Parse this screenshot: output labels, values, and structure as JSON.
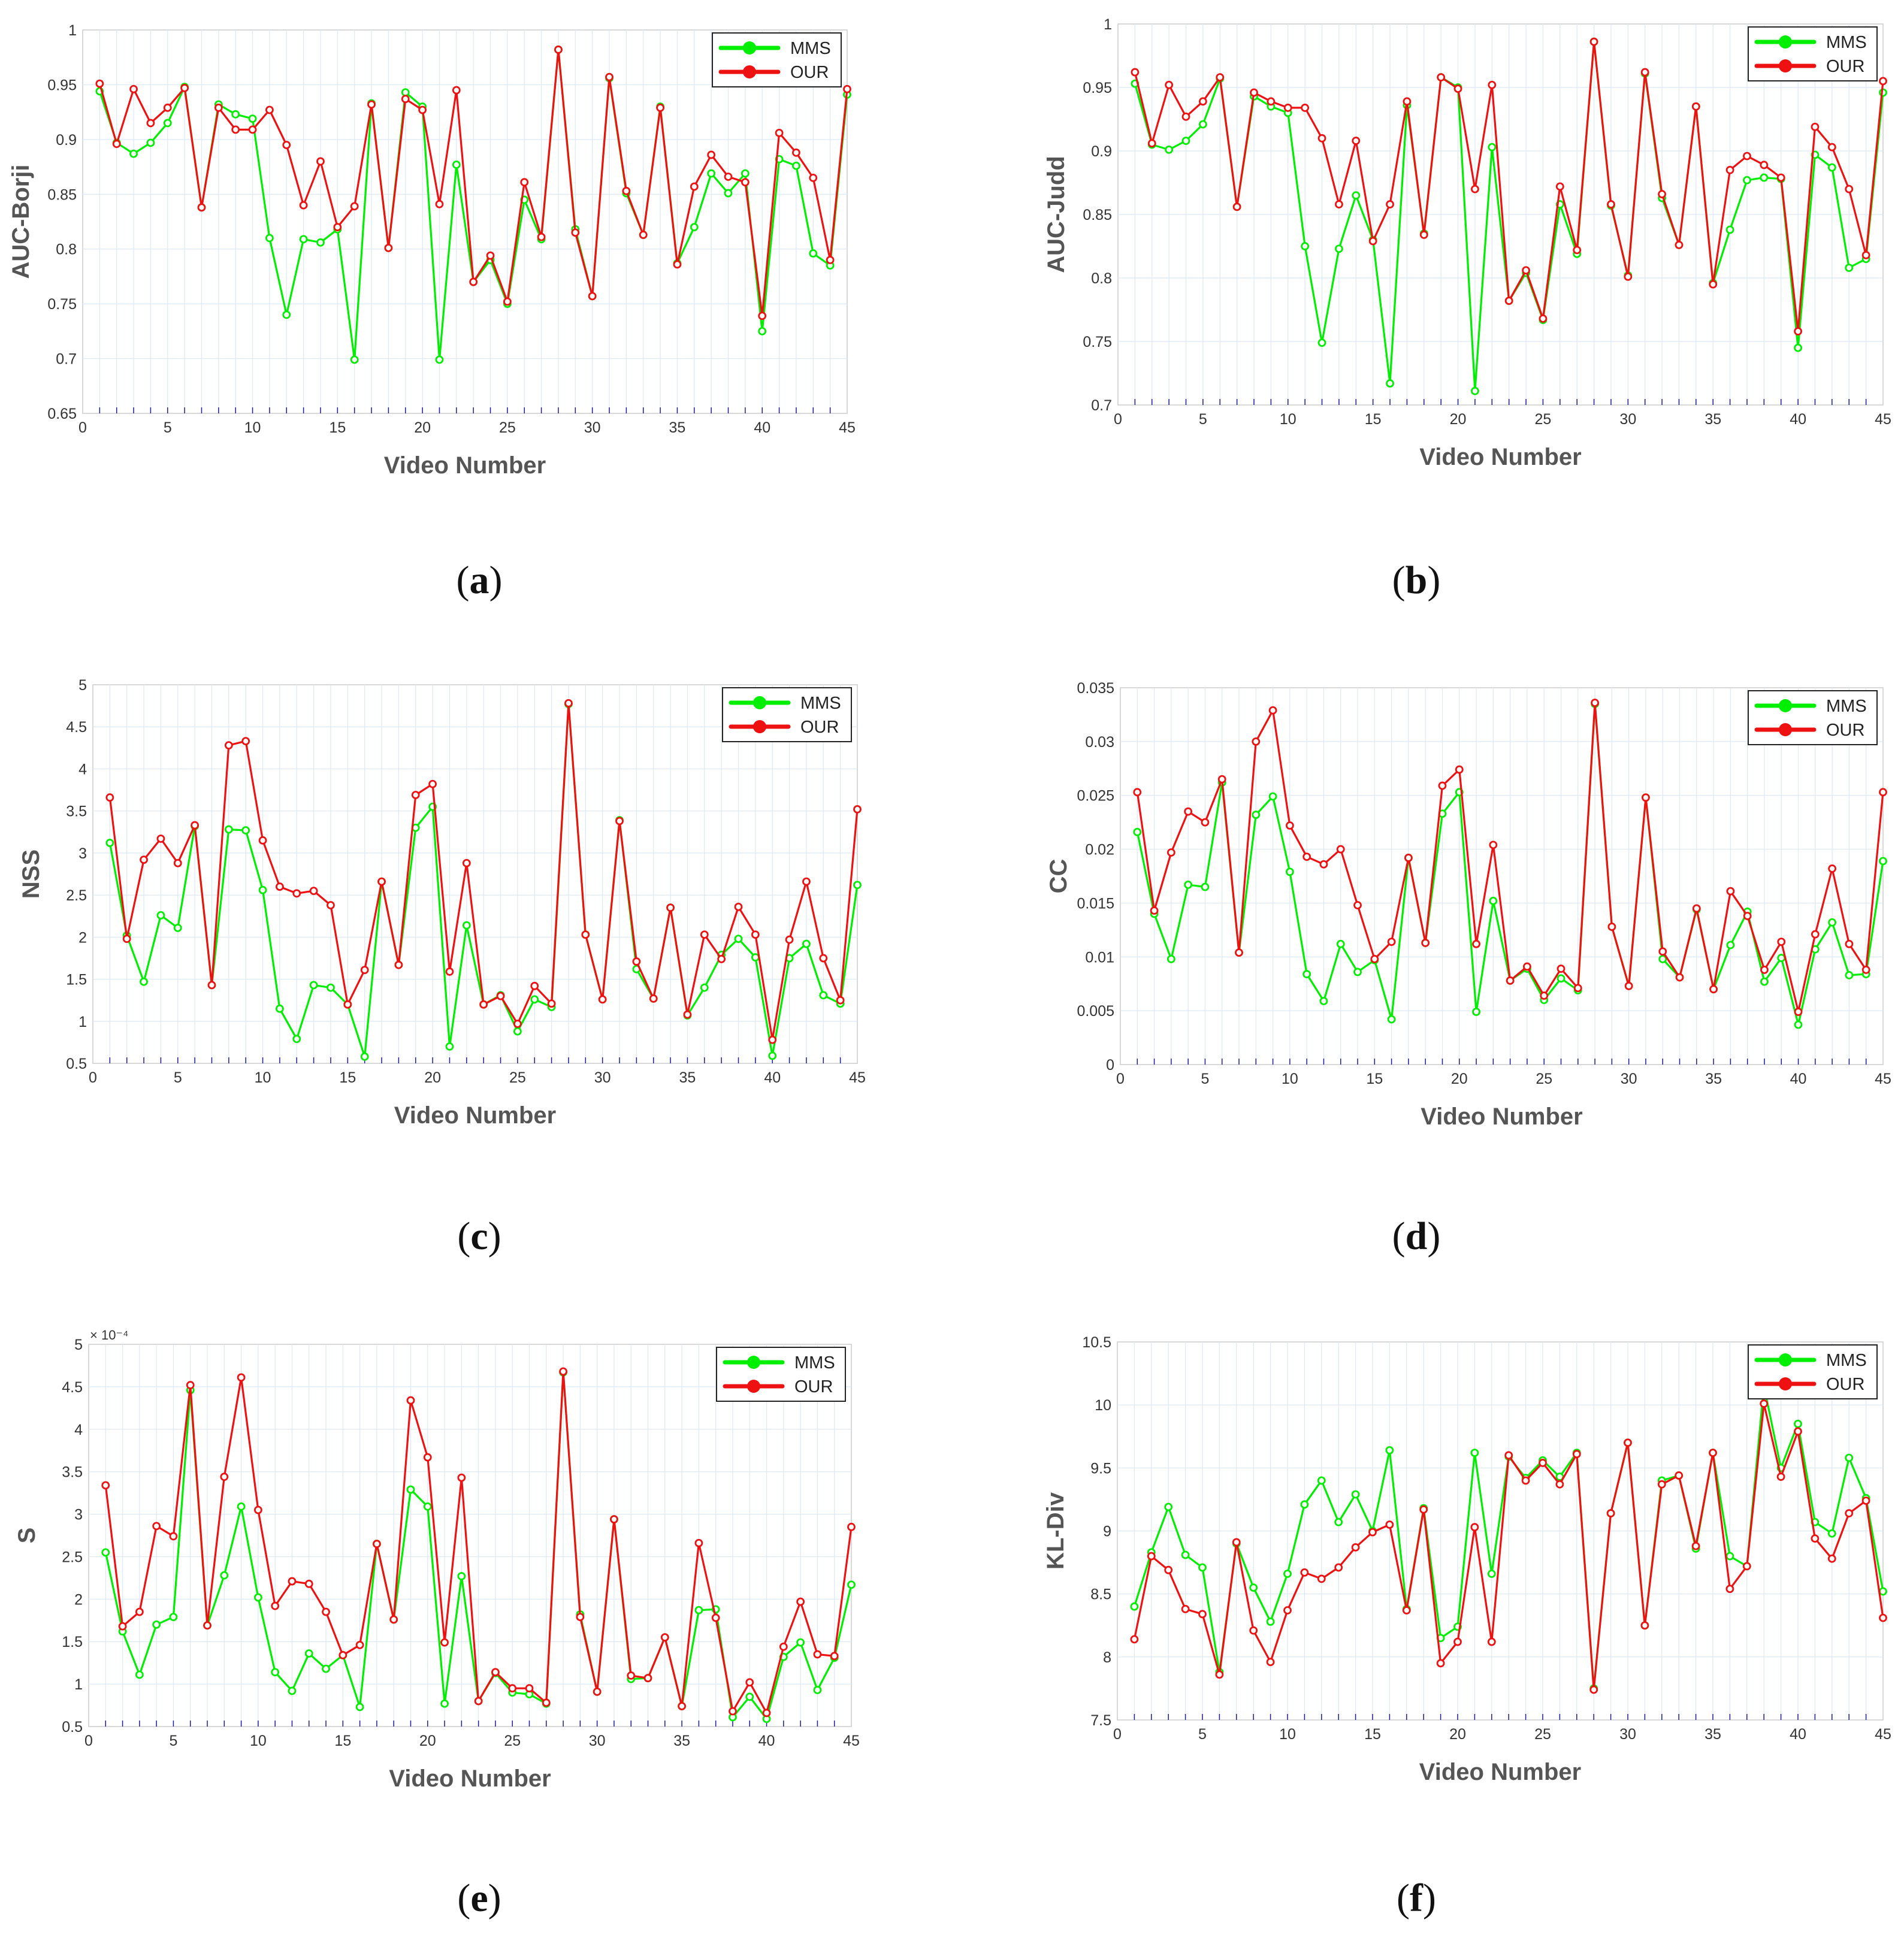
{
  "colors": {
    "mms": "#00ee00",
    "our": "#ee1111",
    "grid": "#dbe8f5",
    "axis": "#cccccc",
    "tickmark": "#1a1aa0"
  },
  "chart_data": [
    {
      "id": "a",
      "type": "line",
      "caption": "a",
      "xlabel": "Video Number",
      "ylabel": "AUC-Borji",
      "xlim": [
        0,
        45
      ],
      "ylim": [
        0.65,
        1
      ],
      "xticks": [
        "0",
        "5",
        "10",
        "15",
        "20",
        "25",
        "30",
        "35",
        "40",
        "45"
      ],
      "yticks": [
        "0.65",
        "0.7",
        "0.75",
        "0.8",
        "0.85",
        "0.9",
        "0.95",
        "1"
      ],
      "exponent": "",
      "x": [
        1,
        2,
        3,
        4,
        5,
        6,
        7,
        8,
        9,
        10,
        11,
        12,
        13,
        14,
        15,
        16,
        17,
        18,
        19,
        20,
        21,
        22,
        23,
        24,
        25,
        26,
        27,
        28,
        29,
        30,
        31,
        32,
        33,
        34,
        35,
        36,
        37,
        38,
        39,
        40,
        41,
        42,
        43,
        44,
        45
      ],
      "series": [
        {
          "name": "MMS",
          "values": [
            0.944,
            0.897,
            0.887,
            0.897,
            0.915,
            0.948,
            0.838,
            0.932,
            0.923,
            0.919,
            0.81,
            0.74,
            0.809,
            0.806,
            0.818,
            0.699,
            0.933,
            0.801,
            0.943,
            0.93,
            0.699,
            0.877,
            0.77,
            0.79,
            0.75,
            0.845,
            0.809,
            0.982,
            0.818,
            0.757,
            0.956,
            0.851,
            0.813,
            0.93,
            0.787,
            0.82,
            0.869,
            0.851,
            0.869,
            0.725,
            0.882,
            0.876,
            0.796,
            0.785,
            0.941
          ]
        },
        {
          "name": "OUR",
          "values": [
            0.951,
            0.896,
            0.946,
            0.915,
            0.929,
            0.947,
            0.838,
            0.929,
            0.909,
            0.909,
            0.927,
            0.895,
            0.84,
            0.88,
            0.82,
            0.839,
            0.932,
            0.801,
            0.937,
            0.927,
            0.841,
            0.945,
            0.77,
            0.794,
            0.752,
            0.861,
            0.811,
            0.982,
            0.815,
            0.757,
            0.957,
            0.853,
            0.813,
            0.929,
            0.786,
            0.857,
            0.886,
            0.866,
            0.861,
            0.739,
            0.906,
            0.888,
            0.865,
            0.79,
            0.946
          ]
        }
      ],
      "legend": [
        "MMS",
        "OUR"
      ]
    },
    {
      "id": "b",
      "type": "line",
      "caption": "b",
      "xlabel": "Video Number",
      "ylabel": "AUC-Judd",
      "xlim": [
        0,
        45
      ],
      "ylim": [
        0.7,
        1
      ],
      "xticks": [
        "0",
        "5",
        "10",
        "15",
        "20",
        "25",
        "30",
        "35",
        "40",
        "45"
      ],
      "yticks": [
        "0.7",
        "0.75",
        "0.8",
        "0.85",
        "0.9",
        "0.95",
        "1"
      ],
      "exponent": "",
      "x": [
        1,
        2,
        3,
        4,
        5,
        6,
        7,
        8,
        9,
        10,
        11,
        12,
        13,
        14,
        15,
        16,
        17,
        18,
        19,
        20,
        21,
        22,
        23,
        24,
        25,
        26,
        27,
        28,
        29,
        30,
        31,
        32,
        33,
        34,
        35,
        36,
        37,
        38,
        39,
        40,
        41,
        42,
        43,
        44,
        45
      ],
      "series": [
        {
          "name": "MMS",
          "values": [
            0.953,
            0.905,
            0.901,
            0.908,
            0.921,
            0.957,
            0.856,
            0.943,
            0.935,
            0.93,
            0.825,
            0.749,
            0.823,
            0.865,
            0.83,
            0.717,
            0.936,
            0.835,
            0.958,
            0.95,
            0.711,
            0.903,
            0.782,
            0.804,
            0.767,
            0.858,
            0.819,
            0.986,
            0.857,
            0.802,
            0.961,
            0.863,
            0.826,
            0.935,
            0.796,
            0.838,
            0.877,
            0.879,
            0.878,
            0.745,
            0.897,
            0.887,
            0.808,
            0.815,
            0.946
          ]
        },
        {
          "name": "OUR",
          "values": [
            0.962,
            0.906,
            0.952,
            0.927,
            0.939,
            0.958,
            0.856,
            0.946,
            0.939,
            0.934,
            0.934,
            0.91,
            0.858,
            0.908,
            0.829,
            0.858,
            0.939,
            0.834,
            0.958,
            0.949,
            0.87,
            0.952,
            0.782,
            0.806,
            0.768,
            0.872,
            0.822,
            0.986,
            0.858,
            0.801,
            0.962,
            0.866,
            0.826,
            0.935,
            0.795,
            0.885,
            0.896,
            0.889,
            0.879,
            0.758,
            0.919,
            0.903,
            0.87,
            0.818,
            0.955
          ]
        }
      ],
      "legend": [
        "MMS",
        "OUR"
      ]
    },
    {
      "id": "c",
      "type": "line",
      "caption": "c",
      "xlabel": "Video Number",
      "ylabel": "NSS",
      "xlim": [
        0,
        45
      ],
      "ylim": [
        0.5,
        5
      ],
      "xticks": [
        "0",
        "5",
        "10",
        "15",
        "20",
        "25",
        "30",
        "35",
        "40",
        "45"
      ],
      "yticks": [
        "0.5",
        "1",
        "1.5",
        "2",
        "2.5",
        "3",
        "3.5",
        "4",
        "4.5",
        "5"
      ],
      "exponent": "",
      "x": [
        1,
        2,
        3,
        4,
        5,
        6,
        7,
        8,
        9,
        10,
        11,
        12,
        13,
        14,
        15,
        16,
        17,
        18,
        19,
        20,
        21,
        22,
        23,
        24,
        25,
        26,
        27,
        28,
        29,
        30,
        31,
        32,
        33,
        34,
        35,
        36,
        37,
        38,
        39,
        40,
        41,
        42,
        43,
        44,
        45
      ],
      "series": [
        {
          "name": "MMS",
          "values": [
            3.12,
            2.02,
            1.47,
            2.26,
            2.11,
            3.32,
            1.43,
            3.28,
            3.27,
            2.56,
            1.15,
            0.79,
            1.43,
            1.4,
            1.2,
            0.58,
            2.66,
            1.67,
            3.3,
            3.55,
            0.7,
            2.14,
            1.2,
            1.31,
            0.88,
            1.26,
            1.17,
            4.77,
            2.03,
            1.26,
            3.39,
            1.62,
            1.27,
            2.35,
            1.07,
            1.4,
            1.79,
            1.98,
            1.76,
            0.59,
            1.75,
            1.92,
            1.31,
            1.21,
            2.62
          ]
        },
        {
          "name": "OUR",
          "values": [
            3.66,
            1.98,
            2.92,
            3.17,
            2.88,
            3.33,
            1.43,
            4.28,
            4.33,
            3.15,
            2.6,
            2.52,
            2.55,
            2.38,
            1.2,
            1.61,
            2.66,
            1.67,
            3.69,
            3.82,
            1.59,
            2.88,
            1.2,
            1.3,
            0.97,
            1.42,
            1.21,
            4.78,
            2.03,
            1.26,
            3.38,
            1.71,
            1.27,
            2.35,
            1.08,
            2.03,
            1.74,
            2.36,
            2.03,
            0.78,
            1.97,
            2.66,
            1.75,
            1.25,
            3.52
          ]
        }
      ],
      "legend": [
        "MMS",
        "OUR"
      ]
    },
    {
      "id": "d",
      "type": "line",
      "caption": "d",
      "xlabel": "Video Number",
      "ylabel": "CC",
      "xlim": [
        0,
        45
      ],
      "ylim": [
        0,
        0.035
      ],
      "xticks": [
        "0",
        "5",
        "10",
        "15",
        "20",
        "25",
        "30",
        "35",
        "40",
        "45"
      ],
      "yticks": [
        "0",
        "0.005",
        "0.01",
        "0.015",
        "0.02",
        "0.025",
        "0.03",
        "0.035"
      ],
      "exponent": "",
      "x": [
        1,
        2,
        3,
        4,
        5,
        6,
        7,
        8,
        9,
        10,
        11,
        12,
        13,
        14,
        15,
        16,
        17,
        18,
        19,
        20,
        21,
        22,
        23,
        24,
        25,
        26,
        27,
        28,
        29,
        30,
        31,
        32,
        33,
        34,
        35,
        36,
        37,
        38,
        39,
        40,
        41,
        42,
        43,
        44,
        45
      ],
      "series": [
        {
          "name": "MMS",
          "values": [
            0.0216,
            0.014,
            0.0098,
            0.0167,
            0.0165,
            0.0262,
            0.0104,
            0.0232,
            0.0249,
            0.0179,
            0.0084,
            0.0059,
            0.0112,
            0.0086,
            0.0097,
            0.0042,
            0.0192,
            0.0113,
            0.0233,
            0.0253,
            0.0049,
            0.0152,
            0.0078,
            0.0089,
            0.006,
            0.008,
            0.0069,
            0.0335,
            0.0128,
            0.0073,
            0.0248,
            0.0098,
            0.0081,
            0.0144,
            0.007,
            0.0111,
            0.0142,
            0.0077,
            0.0099,
            0.0037,
            0.0107,
            0.0132,
            0.0083,
            0.0084,
            0.0189
          ]
        },
        {
          "name": "OUR",
          "values": [
            0.0253,
            0.0143,
            0.0197,
            0.0235,
            0.0225,
            0.0265,
            0.0104,
            0.03,
            0.0329,
            0.0222,
            0.0193,
            0.0186,
            0.02,
            0.0148,
            0.0098,
            0.0114,
            0.0192,
            0.0113,
            0.0259,
            0.0274,
            0.0112,
            0.0204,
            0.0078,
            0.0091,
            0.0064,
            0.0089,
            0.0071,
            0.0336,
            0.0128,
            0.0073,
            0.0248,
            0.0105,
            0.0081,
            0.0145,
            0.007,
            0.0161,
            0.0138,
            0.0088,
            0.0114,
            0.0049,
            0.0121,
            0.0182,
            0.0112,
            0.0088,
            0.0253
          ]
        }
      ],
      "legend": [
        "MMS",
        "OUR"
      ]
    },
    {
      "id": "e",
      "type": "line",
      "caption": "e",
      "xlabel": "Video Number",
      "ylabel": "S",
      "xlim": [
        0,
        45
      ],
      "ylim": [
        0.5,
        5
      ],
      "xticks": [
        "0",
        "5",
        "10",
        "15",
        "20",
        "25",
        "30",
        "35",
        "40",
        "45"
      ],
      "yticks": [
        "0.5",
        "1",
        "1.5",
        "2",
        "2.5",
        "3",
        "3.5",
        "4",
        "4.5",
        "5"
      ],
      "exponent": "× 10⁻⁴",
      "x": [
        1,
        2,
        3,
        4,
        5,
        6,
        7,
        8,
        9,
        10,
        11,
        12,
        13,
        14,
        15,
        16,
        17,
        18,
        19,
        20,
        21,
        22,
        23,
        24,
        25,
        26,
        27,
        28,
        29,
        30,
        31,
        32,
        33,
        34,
        35,
        36,
        37,
        38,
        39,
        40,
        41,
        42,
        43,
        44,
        45
      ],
      "series": [
        {
          "name": "MMS",
          "values": [
            2.55,
            1.62,
            1.11,
            1.7,
            1.79,
            4.46,
            1.69,
            2.28,
            3.09,
            2.02,
            1.14,
            0.92,
            1.36,
            1.18,
            1.34,
            0.73,
            2.65,
            1.76,
            3.29,
            3.09,
            0.77,
            2.27,
            0.8,
            1.13,
            0.9,
            0.88,
            0.77,
            4.67,
            1.82,
            0.91,
            2.94,
            1.06,
            1.07,
            1.55,
            0.74,
            1.87,
            1.88,
            0.61,
            0.85,
            0.59,
            1.32,
            1.49,
            0.93,
            1.31,
            2.17
          ]
        },
        {
          "name": "OUR",
          "values": [
            3.34,
            1.68,
            1.85,
            2.86,
            2.74,
            4.52,
            1.69,
            3.44,
            4.61,
            3.05,
            1.92,
            2.21,
            2.18,
            1.85,
            1.34,
            1.46,
            2.65,
            1.76,
            4.34,
            3.67,
            1.49,
            3.43,
            0.8,
            1.14,
            0.95,
            0.95,
            0.78,
            4.68,
            1.79,
            0.91,
            2.94,
            1.1,
            1.07,
            1.55,
            0.74,
            2.66,
            1.78,
            0.68,
            1.02,
            0.66,
            1.44,
            1.97,
            1.35,
            1.33,
            2.85
          ]
        }
      ],
      "legend": [
        "MMS",
        "OUR"
      ]
    },
    {
      "id": "f",
      "type": "line",
      "caption": "f",
      "xlabel": "Video Number",
      "ylabel": "KL-Div",
      "xlim": [
        0,
        45
      ],
      "ylim": [
        7.5,
        10.5
      ],
      "xticks": [
        "0",
        "5",
        "10",
        "15",
        "20",
        "25",
        "30",
        "35",
        "40",
        "45"
      ],
      "yticks": [
        "7.5",
        "8",
        "8.5",
        "9",
        "9.5",
        "10",
        "10.5"
      ],
      "exponent": "",
      "x": [
        1,
        2,
        3,
        4,
        5,
        6,
        7,
        8,
        9,
        10,
        11,
        12,
        13,
        14,
        15,
        16,
        17,
        18,
        19,
        20,
        21,
        22,
        23,
        24,
        25,
        26,
        27,
        28,
        29,
        30,
        31,
        32,
        33,
        34,
        35,
        36,
        37,
        38,
        39,
        40,
        41,
        42,
        43,
        44,
        45
      ],
      "series": [
        {
          "name": "MMS",
          "values": [
            8.4,
            8.83,
            9.19,
            8.81,
            8.71,
            7.88,
            8.9,
            8.55,
            8.28,
            8.66,
            9.21,
            9.4,
            9.07,
            9.29,
            9.0,
            9.64,
            8.38,
            9.18,
            8.15,
            8.24,
            9.62,
            8.66,
            9.59,
            9.42,
            9.56,
            9.43,
            9.62,
            7.75,
            9.14,
            9.7,
            8.25,
            9.4,
            9.44,
            8.86,
            9.62,
            8.8,
            8.72,
            10.15,
            9.5,
            9.85,
            9.07,
            8.98,
            9.58,
            9.26,
            8.52
          ]
        },
        {
          "name": "OUR",
          "values": [
            8.14,
            8.8,
            8.69,
            8.38,
            8.34,
            7.86,
            8.91,
            8.21,
            7.96,
            8.37,
            8.67,
            8.62,
            8.71,
            8.87,
            8.99,
            9.05,
            8.37,
            9.17,
            7.95,
            8.12,
            9.03,
            8.12,
            9.6,
            9.4,
            9.54,
            9.37,
            9.61,
            7.74,
            9.14,
            9.7,
            8.25,
            9.37,
            9.44,
            8.88,
            9.62,
            8.54,
            8.72,
            10.01,
            9.43,
            9.79,
            8.94,
            8.78,
            9.14,
            9.24,
            8.31
          ]
        }
      ],
      "legend": [
        "MMS",
        "OUR"
      ]
    }
  ]
}
